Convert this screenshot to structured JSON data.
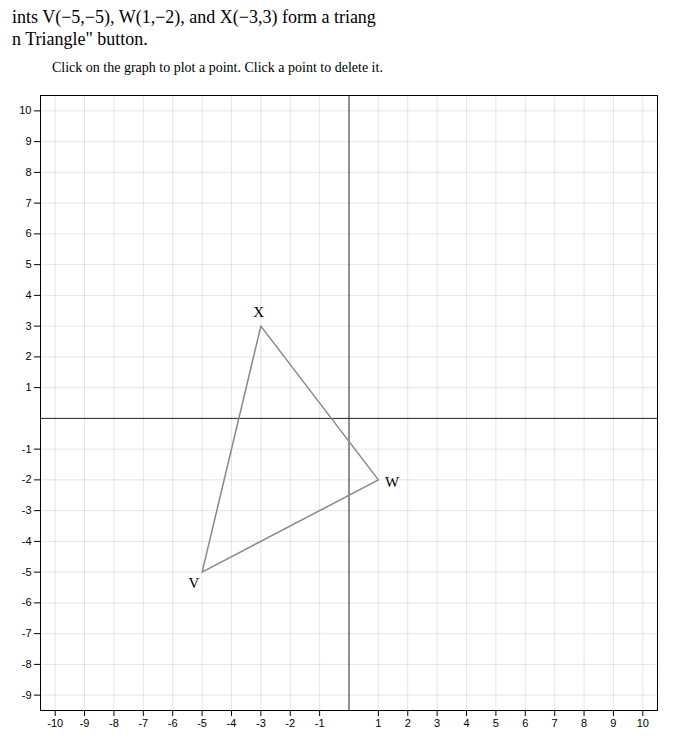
{
  "chart_data": {
    "type": "line",
    "title": [
      "ints V(−5,−5), W(1,−2), and X(−3,3) form a triang",
      "n Triangle\" button."
    ],
    "subtitle": "Click on the graph to plot a point. Click a point to delete it.",
    "x": [
      -5,
      -3,
      1,
      -5
    ],
    "values": [
      -5,
      3,
      -2,
      -5
    ],
    "color": "#888888",
    "annotations": [
      {
        "text": "V",
        "x": -5,
        "y": -5
      },
      {
        "text": "W",
        "x": 1,
        "y": -2
      },
      {
        "text": "X",
        "x": -3,
        "y": 3
      }
    ],
    "xlim": [
      -10.5,
      10.5
    ],
    "ylim": [
      -9.5,
      10.5
    ],
    "xticks": [
      -10,
      -9,
      -8,
      -7,
      -6,
      -5,
      -4,
      -3,
      -2,
      -1,
      1,
      2,
      3,
      4,
      5,
      6,
      7,
      8,
      9,
      10
    ],
    "yticks": [
      -9,
      -8,
      -7,
      -6,
      -5,
      -4,
      -3,
      -2,
      -1,
      1,
      2,
      3,
      4,
      5,
      6,
      7,
      8,
      9,
      10
    ],
    "grid": true
  }
}
